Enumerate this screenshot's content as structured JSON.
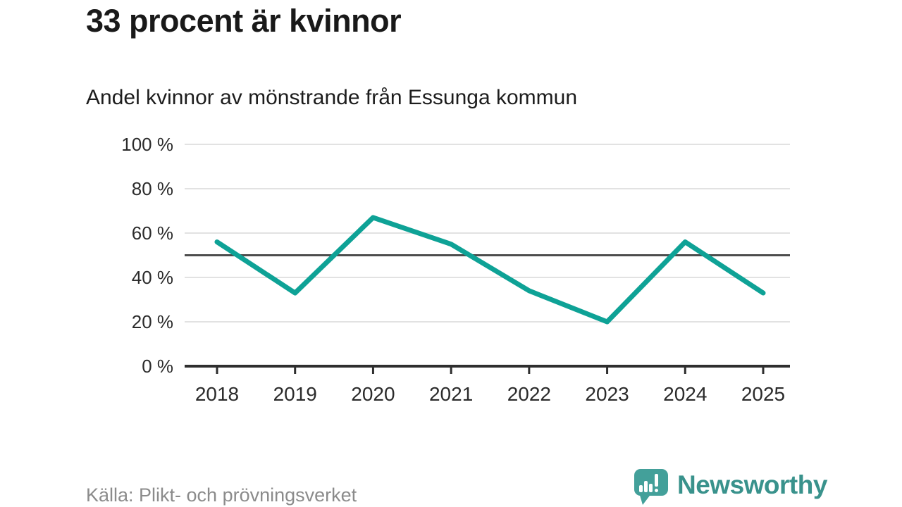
{
  "header": {
    "title": "33 procent är kvinnor",
    "subtitle": "Andel kvinnor av mönstrande från Essunga kommun"
  },
  "footer": {
    "source": "Källa: Plikt- och prövningsverket",
    "brand": "Newsworthy"
  },
  "colors": {
    "line": "#0ea296",
    "grid": "#e2e2e2",
    "reference_line": "#4d4d4d",
    "axis": "#2e2e2e",
    "tick_label": "#2b2b2b",
    "brand_text": "#39928c",
    "logo_bubble": "#43a09a"
  },
  "chart_data": {
    "type": "line",
    "title": "33 procent är kvinnor",
    "subtitle": "Andel kvinnor av mönstrande från Essunga kommun",
    "x": [
      2018,
      2019,
      2020,
      2021,
      2022,
      2023,
      2024,
      2025
    ],
    "series": [
      {
        "name": "Andel kvinnor av mönstrande",
        "values": [
          56,
          33,
          67,
          55,
          34,
          20,
          56,
          33
        ]
      }
    ],
    "unit": "%",
    "ylim": [
      0,
      100
    ],
    "yticks": [
      0,
      20,
      40,
      60,
      80,
      100
    ],
    "ytick_suffix": " %",
    "reference_line": 50,
    "grid": true,
    "legend": false,
    "xlabel": "",
    "ylabel": ""
  }
}
